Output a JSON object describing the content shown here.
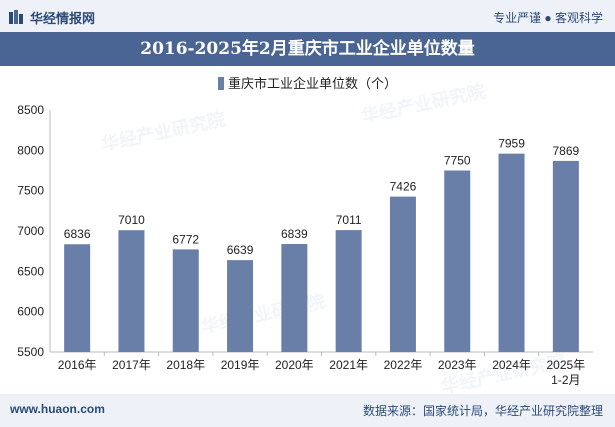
{
  "header": {
    "brand": "华经情报网",
    "slogan": "专业严谨 ● 客观科学",
    "logo_icon": "huajing-logo-icon"
  },
  "chart_data": {
    "type": "bar",
    "title": "2016-2025年2月重庆市工业企业单位数量",
    "legend": "重庆市工业企业单位数（个）",
    "categories": [
      "2016年",
      "2017年",
      "2018年",
      "2019年",
      "2020年",
      "2021年",
      "2022年",
      "2023年",
      "2024年",
      "2025年\n1-2月"
    ],
    "series": [
      {
        "name": "重庆市工业企业单位数（个）",
        "values": [
          6836,
          7010,
          6772,
          6639,
          6839,
          7011,
          7426,
          7750,
          7959,
          7869
        ]
      }
    ],
    "ylim": [
      5500,
      8500
    ],
    "yticks": [
      5500,
      6000,
      6500,
      7000,
      7500,
      8000,
      8500
    ],
    "xlabel": "",
    "ylabel": "",
    "grid": false,
    "legend_position": "top",
    "bar_color": "#6a7fa7"
  },
  "watermarks": [
    "华经产业研究院",
    "www.huaon.com"
  ],
  "footer": {
    "site": "www.huaon.com",
    "source": "数据来源：国家统计局，华经产业研究院整理"
  }
}
